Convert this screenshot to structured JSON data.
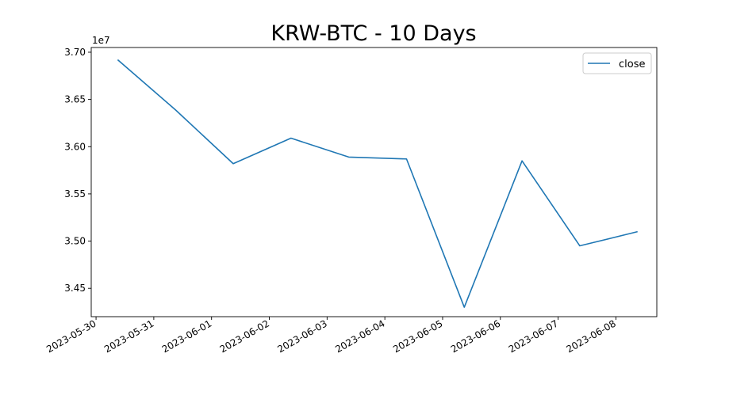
{
  "chart_data": {
    "type": "line",
    "title": "KRW-BTC - 10 Days",
    "xlabel": "",
    "ylabel": "",
    "y_offset_label": "1e7",
    "y_scale": 10000000,
    "x_tick_labels": [
      "2023-05-30",
      "2023-05-31",
      "2023-06-01",
      "2023-06-02",
      "2023-06-03",
      "2023-06-04",
      "2023-06-05",
      "2023-06-06",
      "2023-06-07",
      "2023-06-08"
    ],
    "y_ticks": [
      3.45,
      3.5,
      3.55,
      3.6,
      3.65,
      3.7
    ],
    "y_tick_labels": [
      "3.45",
      "3.50",
      "3.55",
      "3.60",
      "3.65",
      "3.70"
    ],
    "xlim": [
      "2023-05-29T22:00",
      "2023-06-08T17:00"
    ],
    "ylim": [
      34200000,
      37050000
    ],
    "legend_position": "top-right",
    "grid": false,
    "series": [
      {
        "name": "close",
        "color": "#1f77b4",
        "x": [
          "2023-05-30T09:00",
          "2023-05-31T09:00",
          "2023-06-01T09:00",
          "2023-06-02T09:00",
          "2023-06-03T09:00",
          "2023-06-04T09:00",
          "2023-06-05T09:00",
          "2023-06-06T09:00",
          "2023-06-07T09:00",
          "2023-06-08T09:00"
        ],
        "values": [
          36920000,
          36390000,
          35820000,
          36090000,
          35890000,
          35870000,
          34300000,
          35850000,
          34950000,
          35100000
        ]
      }
    ]
  }
}
